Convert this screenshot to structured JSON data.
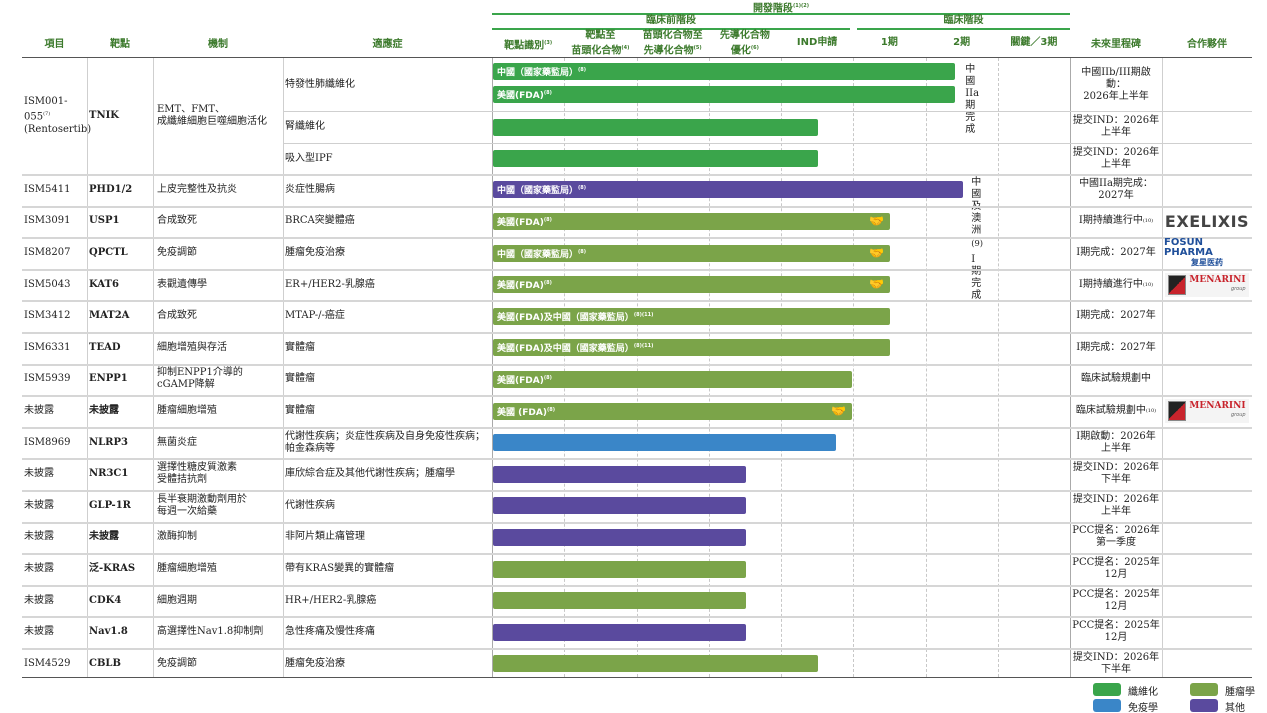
{
  "header": {
    "columns": {
      "project": "項目",
      "target": "靶點",
      "mechanism": "機制",
      "indication": "適應症",
      "milestone": "未來里程碑",
      "partner": "合作夥伴"
    },
    "dev_stage": "開發階段",
    "dev_stage_sup": "(1)(2)",
    "preclinical": "臨床前階段",
    "clinical": "臨床階段",
    "stages": [
      {
        "label": "靶點識別",
        "sup": "(3)"
      },
      {
        "label": "靶點至\n苗頭化合物",
        "sup": "(4)"
      },
      {
        "label": "苗頭化合物至\n先導化合物",
        "sup": "(5)"
      },
      {
        "label": "先導化合物\n優化",
        "sup": "(6)"
      },
      {
        "label": "IND申請",
        "sup": ""
      },
      {
        "label": "1期",
        "sup": ""
      },
      {
        "label": "2期",
        "sup": ""
      },
      {
        "label": "關鍵／3期",
        "sup": ""
      }
    ]
  },
  "colors": {
    "fibrosis": "#3aa54b",
    "oncology": "#7ba449",
    "immunology": "#3a86c8",
    "other": "#5a4a9e"
  },
  "legend": [
    {
      "key": "fibrosis",
      "label": "纖維化"
    },
    {
      "key": "oncology",
      "label": "腫瘤學"
    },
    {
      "key": "immunology",
      "label": "免疫學"
    },
    {
      "key": "other",
      "label": "其他"
    }
  ],
  "rows": [
    {
      "project": "ISM001-055",
      "project_sup": "(7)",
      "project2": "(Rentosertib)",
      "target": "TNIK",
      "mechanism": "EMT、FMT、\n成纖維細胞巨噬細胞活化",
      "indications": [
        {
          "text": "特發性肺纖維化",
          "bars": [
            {
              "label": "中國（國家藥監局）",
              "sup": "(8)",
              "area": "fibrosis",
              "stage_progress": 6.4,
              "partnered": false
            },
            {
              "label": "美國(FDA)",
              "sup": "(8)",
              "area": "fibrosis",
              "stage_progress": 6.4,
              "partnered": false
            }
          ],
          "note": "中國IIa期完成",
          "milestone": "中國IIb/III期啟動：\n2026年上半年"
        },
        {
          "text": "腎纖維化",
          "bars": [
            {
              "label": "",
              "sup": "",
              "area": "fibrosis",
              "stage_progress": 4.5,
              "partnered": false
            }
          ],
          "milestone": "提交IND：2026年\n上半年"
        },
        {
          "text": "吸入型IPF",
          "bars": [
            {
              "label": "",
              "sup": "",
              "area": "fibrosis",
              "stage_progress": 4.5,
              "partnered": false
            }
          ],
          "milestone": "提交IND：2026年\n上半年"
        }
      ]
    },
    {
      "project": "ISM5411",
      "target": "PHD1/2",
      "mechanism": "上皮完整性及抗炎",
      "indications": [
        {
          "text": "炎症性腸病",
          "bars": [
            {
              "label": "中國（國家藥監局）",
              "sup": "(8)",
              "area": "other",
              "stage_progress": 6.5,
              "partnered": false
            }
          ],
          "note": "中國及澳洲",
          "note_sup": "(9)",
          "note2": "I期完成",
          "milestone": "中國IIa期完成：\n2027年"
        }
      ]
    },
    {
      "project": "ISM3091",
      "target": "USP1",
      "mechanism": "合成致死",
      "indications": [
        {
          "text": "BRCA突變體癌",
          "bars": [
            {
              "label": "美國(FDA)",
              "sup": "(8)",
              "area": "oncology",
              "stage_progress": 5.5,
              "partnered": true
            }
          ],
          "milestone": "I期持續進行中",
          "milestone_sup": "(10)"
        }
      ],
      "partner": "EXELIXIS"
    },
    {
      "project": "ISM8207",
      "target": "QPCTL",
      "mechanism": "免疫調節",
      "indications": [
        {
          "text": "腫瘤免疫治療",
          "bars": [
            {
              "label": "中國（國家藥監局）",
              "sup": "(8)",
              "area": "oncology",
              "stage_progress": 5.5,
              "partnered": true
            }
          ],
          "milestone": "I期完成：2027年"
        }
      ],
      "partner": "FOSUN PHARMA",
      "partner_sub": "复星医药"
    },
    {
      "project": "ISM5043",
      "target": "KAT6",
      "mechanism": "表觀遺傳學",
      "indications": [
        {
          "text": "ER+/HER2-乳腺癌",
          "bars": [
            {
              "label": "美國(FDA)",
              "sup": "(8)",
              "area": "oncology",
              "stage_progress": 5.5,
              "partnered": true
            }
          ],
          "milestone": "I期持續進行中",
          "milestone_sup": "(10)"
        }
      ],
      "partner": "MENARINI",
      "partner_sub": "group"
    },
    {
      "project": "ISM3412",
      "target": "MAT2A",
      "mechanism": "合成致死",
      "indications": [
        {
          "text": "MTAP-/-癌症",
          "bars": [
            {
              "label": "美國(FDA)及中國（國家藥監局）",
              "sup": "(8)(11)",
              "area": "oncology",
              "stage_progress": 5.5,
              "partnered": false
            }
          ],
          "milestone": "I期完成：2027年"
        }
      ]
    },
    {
      "project": "ISM6331",
      "target": "TEAD",
      "mechanism": "細胞增殖與存活",
      "indications": [
        {
          "text": "實體瘤",
          "bars": [
            {
              "label": "美國(FDA)及中國（國家藥監局）",
              "sup": "(8)(11)",
              "area": "oncology",
              "stage_progress": 5.5,
              "partnered": false
            }
          ],
          "milestone": "I期完成：2027年"
        }
      ]
    },
    {
      "project": "ISM5939",
      "target": "ENPP1",
      "mechanism": "抑制ENPP1介導的\ncGAMP降解",
      "indications": [
        {
          "text": "實體瘤",
          "bars": [
            {
              "label": "美國(FDA)",
              "sup": "(8)",
              "area": "oncology",
              "stage_progress": 4.97,
              "partnered": false
            }
          ],
          "milestone": "臨床試驗規劃中"
        }
      ]
    },
    {
      "project": "未披露",
      "target": "未披露",
      "mechanism": "腫瘤細胞增殖",
      "indications": [
        {
          "text": "實體瘤",
          "bars": [
            {
              "label": "美國 (FDA)",
              "sup": "(8)",
              "area": "oncology",
              "stage_progress": 4.97,
              "partnered": true
            }
          ],
          "milestone": "臨床試驗規劃中",
          "milestone_sup": "(10)"
        }
      ],
      "partner": "MENARINI",
      "partner_sub": "group"
    },
    {
      "project": "ISM8969",
      "target": "NLRP3",
      "mechanism": "無菌炎症",
      "indications": [
        {
          "text": "代謝性疾病；炎症性疾病及自身免疫性疾病；\n帕金森病等",
          "bars": [
            {
              "label": "",
              "sup": "",
              "area": "immunology",
              "stage_progress": 4.75,
              "partnered": false
            }
          ],
          "milestone": "I期啟動：2026年\n上半年"
        }
      ]
    },
    {
      "project": "未披露",
      "target": "NR3C1",
      "mechanism": "選擇性糖皮質激素\n受體拮抗劑",
      "indications": [
        {
          "text": "庫欣綜合症及其他代謝性疾病；腫瘤學",
          "bars": [
            {
              "label": "",
              "sup": "",
              "area": "other",
              "stage_progress": 3.5,
              "partnered": false
            }
          ],
          "milestone": "提交IND：2026年\n下半年"
        }
      ]
    },
    {
      "project": "未披露",
      "target": "GLP-1R",
      "mechanism": "長半衰期激動劑用於\n每週一次給藥",
      "indications": [
        {
          "text": "代謝性疾病",
          "bars": [
            {
              "label": "",
              "sup": "",
              "area": "other",
              "stage_progress": 3.5,
              "partnered": false
            }
          ],
          "milestone": "提交IND：2026年\n上半年"
        }
      ]
    },
    {
      "project": "未披露",
      "target": "未披露",
      "mechanism": "激酶抑制",
      "indications": [
        {
          "text": "非阿片類止痛管理",
          "bars": [
            {
              "label": "",
              "sup": "",
              "area": "other",
              "stage_progress": 3.5,
              "partnered": false
            }
          ],
          "milestone": "PCC提名：2026年\n第一季度"
        }
      ]
    },
    {
      "project": "未披露",
      "target": "泛-KRAS",
      "mechanism": "腫瘤細胞增殖",
      "indications": [
        {
          "text": "帶有KRAS變異的實體瘤",
          "bars": [
            {
              "label": "",
              "sup": "",
              "area": "oncology",
              "stage_progress": 3.5,
              "partnered": false
            }
          ],
          "milestone": "PCC提名：2025年\n12月"
        }
      ]
    },
    {
      "project": "未披露",
      "target": "CDK4",
      "mechanism": "細胞週期",
      "indications": [
        {
          "text": "HR+/HER2-乳腺癌",
          "bars": [
            {
              "label": "",
              "sup": "",
              "area": "oncology",
              "stage_progress": 3.5,
              "partnered": false
            }
          ],
          "milestone": "PCC提名：2025年\n12月"
        }
      ]
    },
    {
      "project": "未披露",
      "target": "Nav1.8",
      "mechanism": "高選擇性Nav1.8抑制劑",
      "indications": [
        {
          "text": "急性疼痛及慢性疼痛",
          "bars": [
            {
              "label": "",
              "sup": "",
              "area": "other",
              "stage_progress": 3.5,
              "partnered": false
            }
          ],
          "milestone": "PCC提名：2025年\n12月"
        }
      ]
    },
    {
      "project": "ISM4529",
      "target": "CBLB",
      "mechanism": "免疫調節",
      "indications": [
        {
          "text": "腫瘤免疫治療",
          "bars": [
            {
              "label": "",
              "sup": "",
              "area": "oncology",
              "stage_progress": 4.5,
              "partnered": false
            }
          ],
          "milestone": "提交IND：2026年\n下半年"
        }
      ]
    }
  ]
}
